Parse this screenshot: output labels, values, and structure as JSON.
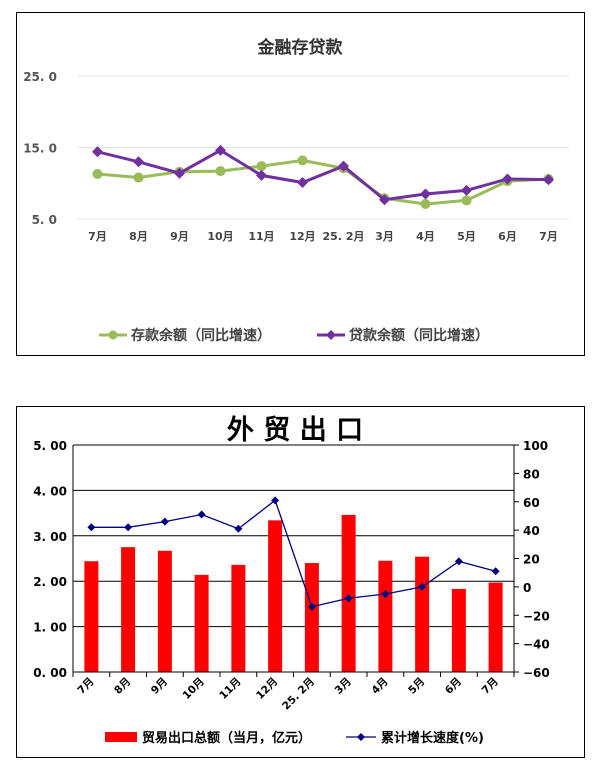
{
  "charts": {
    "finance": {
      "title": "金融存贷款",
      "y_ticks": [
        "25. 0",
        "15. 0",
        "5. 0"
      ],
      "legend": [
        "存款余额（同比增速）",
        "贷款余额（同比增速）"
      ]
    },
    "trade": {
      "title": "外 贸 出 口",
      "y_left_ticks": [
        "5. 00",
        "4. 00",
        "3. 00",
        "2. 00",
        "1. 00",
        "0. 00"
      ],
      "y_right_ticks": [
        "100",
        "80",
        "60",
        "40",
        "20",
        "0",
        "−20",
        "−40",
        "−60"
      ],
      "legend": [
        "贸易出口总额（当月，亿元）",
        "累计增长速度(%)"
      ]
    }
  },
  "chart_data": [
    {
      "type": "line",
      "title": "金融存贷款",
      "categories": [
        "7月",
        "8月",
        "9月",
        "10月",
        "11月",
        "12月",
        "25. 2月",
        "3月",
        "4月",
        "5月",
        "6月",
        "7月"
      ],
      "ylim": [
        5,
        25
      ],
      "y_ticks": [
        25,
        15,
        5
      ],
      "grid": true,
      "legend_position": "bottom",
      "series": [
        {
          "name": "存款余额（同比增速）",
          "color": "#9bbb59",
          "marker": "circle",
          "values": [
            11.3,
            10.8,
            11.6,
            11.7,
            12.4,
            13.2,
            12.1,
            7.9,
            7.1,
            7.6,
            10.3,
            10.6
          ]
        },
        {
          "name": "贷款余额（同比增速）",
          "color": "#7030a0",
          "marker": "diamond",
          "values": [
            14.4,
            13.0,
            11.4,
            14.6,
            11.1,
            10.1,
            12.4,
            7.7,
            8.5,
            9.0,
            10.6,
            10.5
          ]
        }
      ]
    },
    {
      "type": "bar+line",
      "title": "外 贸 出 口",
      "categories": [
        "7月",
        "8月",
        "9月",
        "10月",
        "11月",
        "12月",
        "25. 2月",
        "3月",
        "4月",
        "5月",
        "6月",
        "7月"
      ],
      "ylim_left": [
        0,
        5
      ],
      "ylim_right": [
        -60,
        100
      ],
      "grid": true,
      "legend_position": "bottom",
      "series": [
        {
          "name": "贸易出口总额（当月，亿元）",
          "type": "bar",
          "axis": "left",
          "color": "#ff0000",
          "values": [
            2.44,
            2.75,
            2.67,
            2.14,
            2.36,
            3.34,
            2.4,
            3.46,
            2.45,
            2.54,
            1.83,
            1.97
          ]
        },
        {
          "name": "累计增长速度(%)",
          "type": "line",
          "axis": "right",
          "color": "#000080",
          "marker": "diamond",
          "values": [
            42,
            42,
            46,
            51,
            41,
            61,
            -14,
            -8,
            -5,
            0,
            18,
            11
          ]
        }
      ]
    }
  ]
}
